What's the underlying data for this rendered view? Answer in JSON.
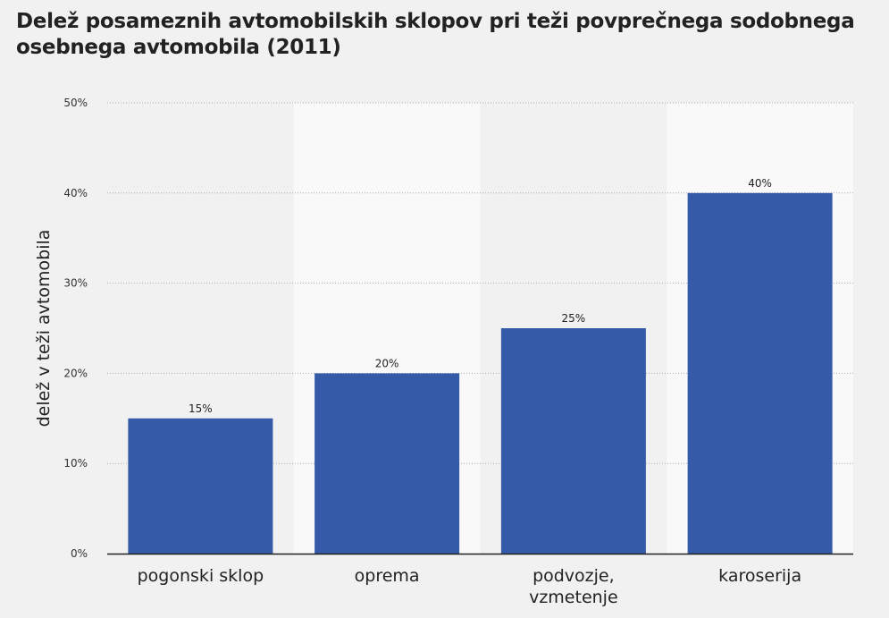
{
  "chart_data": {
    "type": "bar",
    "title": "Delež posameznih avtomobilskih sklopov pri teži povprečnega sodobnega osebnega avtomobila (2011)",
    "xlabel": "",
    "ylabel": "delež v teži avtomobila",
    "categories": [
      [
        "pogonski sklop"
      ],
      [
        "oprema"
      ],
      [
        "podvozje,",
        "vzmetenje"
      ],
      [
        "karoserija"
      ]
    ],
    "values": [
      15,
      20,
      25,
      40
    ],
    "data_labels": [
      "15%",
      "20%",
      "25%",
      "40%"
    ],
    "ylim": [
      0,
      50
    ],
    "yticks": [
      0,
      10,
      20,
      30,
      40,
      50
    ],
    "ytick_labels": [
      "0%",
      "10%",
      "20%",
      "30%",
      "40%",
      "50%"
    ],
    "grid": true,
    "colors": {
      "bar": "#355aa8",
      "band_light": "#f9f9fa",
      "background": "#f1f1f2"
    }
  }
}
